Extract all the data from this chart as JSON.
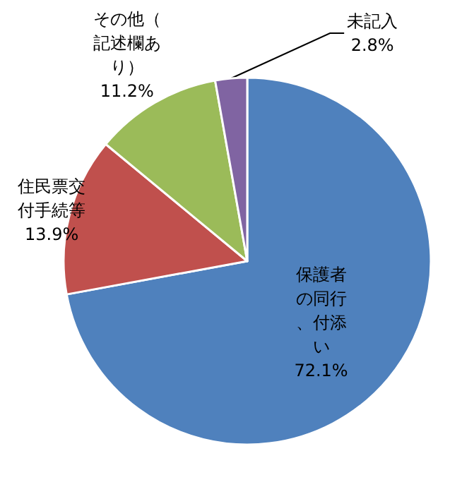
{
  "chart_data": {
    "type": "pie",
    "categories": [
      "保護者の同行、付添い",
      "住民票交付手続等",
      "その他（記述欄あり）",
      "未記入"
    ],
    "values": [
      72.1,
      13.9,
      11.2,
      2.8
    ],
    "value_labels": [
      "72.1%",
      "13.9%",
      "11.2%",
      "2.8%"
    ],
    "colors": [
      "#4f81bd",
      "#c0504d",
      "#9bbb59",
      "#8064a2"
    ],
    "legend": false
  }
}
